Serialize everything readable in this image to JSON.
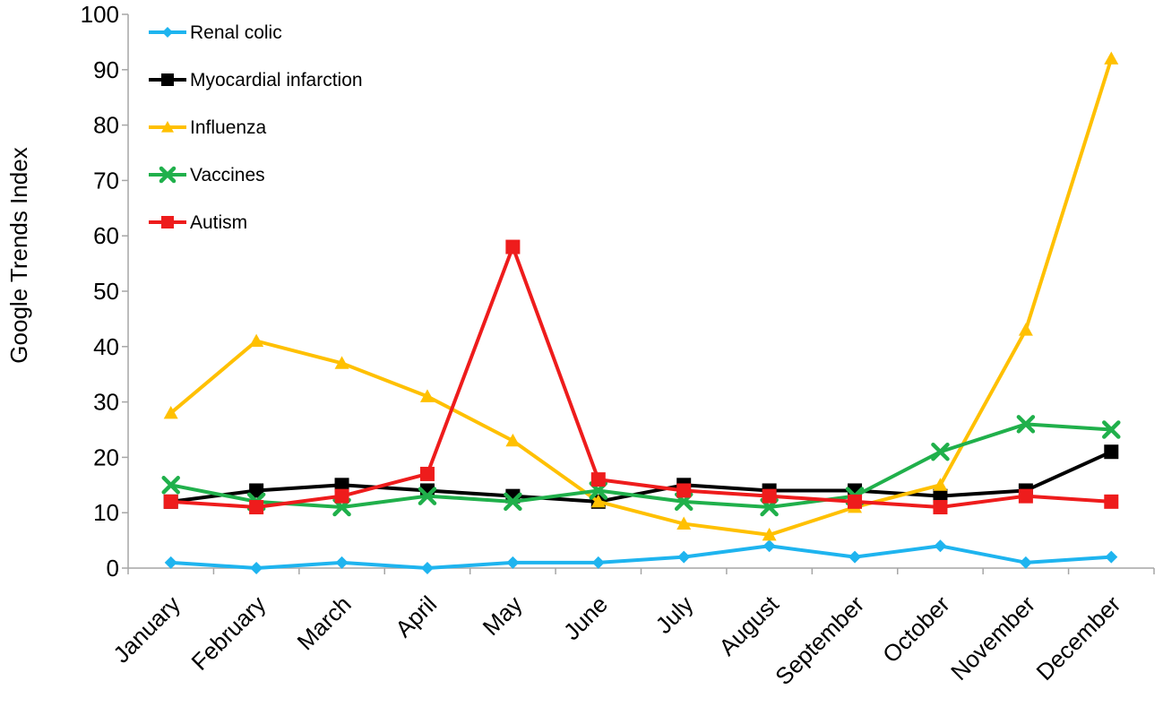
{
  "chart_data": {
    "type": "line",
    "title": "",
    "xlabel": "",
    "ylabel": "Google Trends Index",
    "ylim": [
      0,
      100
    ],
    "yticks": [
      0,
      10,
      20,
      30,
      40,
      50,
      60,
      70,
      80,
      90,
      100
    ],
    "grid": false,
    "legend_position": "top-left",
    "categories": [
      "January",
      "February",
      "March",
      "April",
      "May",
      "June",
      "July",
      "August",
      "September",
      "October",
      "November",
      "December"
    ],
    "series": [
      {
        "name": "Renal colic",
        "color": "#1EB4EF",
        "marker": "diamond",
        "values": [
          1,
          0,
          1,
          0,
          1,
          1,
          2,
          4,
          2,
          4,
          1,
          2
        ]
      },
      {
        "name": "Myocardial infarction",
        "color": "#000000",
        "marker": "square",
        "values": [
          12,
          14,
          15,
          14,
          13,
          12,
          15,
          14,
          14,
          13,
          14,
          21
        ]
      },
      {
        "name": "Influenza",
        "color": "#FFC000",
        "marker": "triangle",
        "values": [
          28,
          41,
          37,
          31,
          23,
          12,
          8,
          6,
          11,
          15,
          43,
          92
        ]
      },
      {
        "name": "Vaccines",
        "color": "#20B04B",
        "marker": "x",
        "values": [
          15,
          12,
          11,
          13,
          12,
          14,
          12,
          11,
          13,
          21,
          26,
          25
        ]
      },
      {
        "name": "Autism",
        "color": "#EE1C1C",
        "marker": "square",
        "values": [
          12,
          11,
          13,
          17,
          58,
          16,
          14,
          13,
          12,
          11,
          13,
          12
        ]
      }
    ]
  }
}
